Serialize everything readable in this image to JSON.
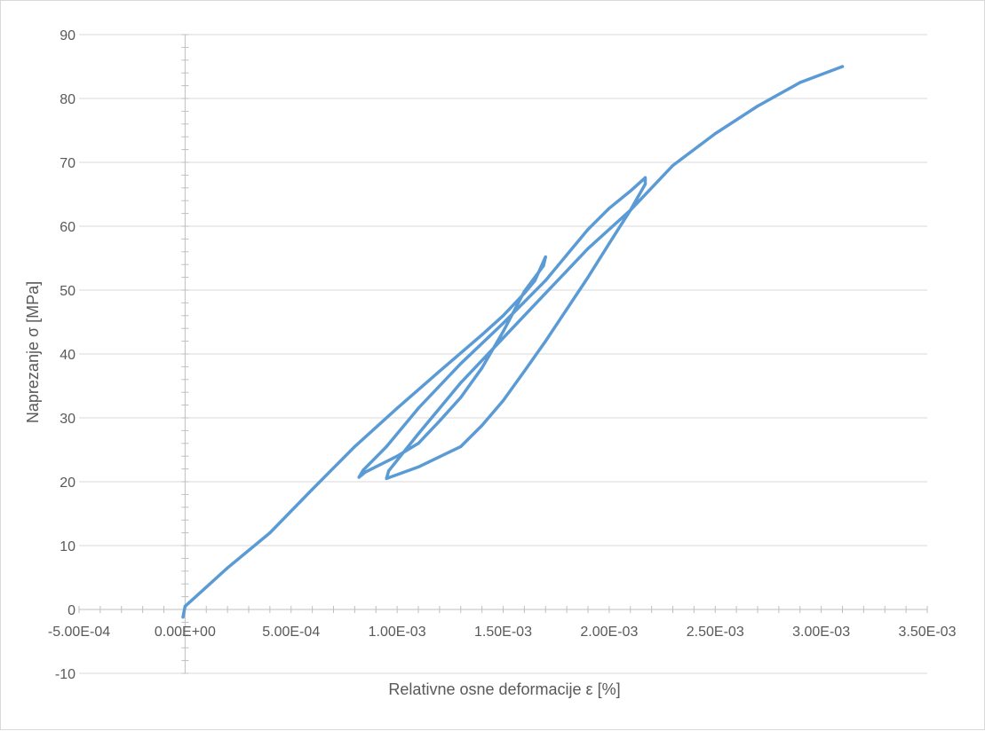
{
  "chart_data": {
    "type": "scatter",
    "xlabel": "Relativne osne deformacije ε [%]",
    "ylabel": "Naprezanje σ [MPa]",
    "xlim": [
      -0.0005,
      0.0035
    ],
    "ylim": [
      -10,
      90
    ],
    "x_ticks": [
      -0.0005,
      0.0,
      0.0005,
      0.001,
      0.0015,
      0.002,
      0.0025,
      0.003,
      0.0035
    ],
    "x_tick_labels": [
      "-5.00E-04",
      "0.00E+00",
      "5.00E-04",
      "1.00E-03",
      "1.50E-03",
      "2.00E-03",
      "2.50E-03",
      "3.00E-03",
      "3.50E-03"
    ],
    "y_ticks": [
      -10,
      0,
      10,
      20,
      30,
      40,
      50,
      60,
      70,
      80,
      90
    ],
    "y_tick_labels": [
      "-10",
      "0",
      "10",
      "20",
      "30",
      "40",
      "50",
      "60",
      "70",
      "80",
      "90"
    ],
    "grid": "horizontal",
    "legend": "none",
    "series": [
      {
        "color": "#5b9bd5",
        "points": [
          [
            -1e-05,
            -1.2
          ],
          [
            0.0,
            0.5
          ],
          [
            0.0001,
            3.5
          ],
          [
            0.0002,
            6.5
          ],
          [
            0.0004,
            12
          ],
          [
            0.0006,
            18.8
          ],
          [
            0.0008,
            25.5
          ],
          [
            0.001,
            31.5
          ],
          [
            0.0012,
            37.3
          ],
          [
            0.0014,
            43
          ],
          [
            0.0015,
            46
          ],
          [
            0.0016,
            49.5
          ],
          [
            0.00165,
            51.5
          ],
          [
            0.0017,
            55.2
          ],
          [
            0.00169,
            53.8
          ],
          [
            0.0016,
            49.8
          ],
          [
            0.0015,
            43.5
          ],
          [
            0.0014,
            37.8
          ],
          [
            0.0013,
            33.2
          ],
          [
            0.0012,
            29.5
          ],
          [
            0.0011,
            26
          ],
          [
            0.001,
            24
          ],
          [
            0.00085,
            21.5
          ],
          [
            0.00082,
            20.7
          ],
          [
            0.00084,
            21.8
          ],
          [
            0.00095,
            25.5
          ],
          [
            0.0011,
            31.5
          ],
          [
            0.0013,
            38.5
          ],
          [
            0.0015,
            44.8
          ],
          [
            0.0017,
            51.5
          ],
          [
            0.0018,
            55.5
          ],
          [
            0.0019,
            59.5
          ],
          [
            0.002,
            62.8
          ],
          [
            0.0021,
            65.5
          ],
          [
            0.00217,
            67.6
          ],
          [
            0.00217,
            66.6
          ],
          [
            0.0021,
            62.5
          ],
          [
            0.002,
            57.3
          ],
          [
            0.0019,
            52
          ],
          [
            0.0018,
            47
          ],
          [
            0.0017,
            42
          ],
          [
            0.0016,
            37.3
          ],
          [
            0.0015,
            32.7
          ],
          [
            0.0014,
            28.8
          ],
          [
            0.0013,
            25.5
          ],
          [
            0.0011,
            22.3
          ],
          [
            0.00095,
            20.5
          ],
          [
            0.00096,
            21.7
          ],
          [
            0.0011,
            27.5
          ],
          [
            0.0013,
            35.5
          ],
          [
            0.0015,
            42.5
          ],
          [
            0.0017,
            49.5
          ],
          [
            0.0019,
            56.5
          ],
          [
            0.0021,
            62.5
          ],
          [
            0.0022,
            66
          ],
          [
            0.0023,
            69.5
          ],
          [
            0.0025,
            74.5
          ],
          [
            0.0027,
            78.8
          ],
          [
            0.0029,
            82.5
          ],
          [
            0.0031,
            85
          ]
        ]
      }
    ]
  }
}
